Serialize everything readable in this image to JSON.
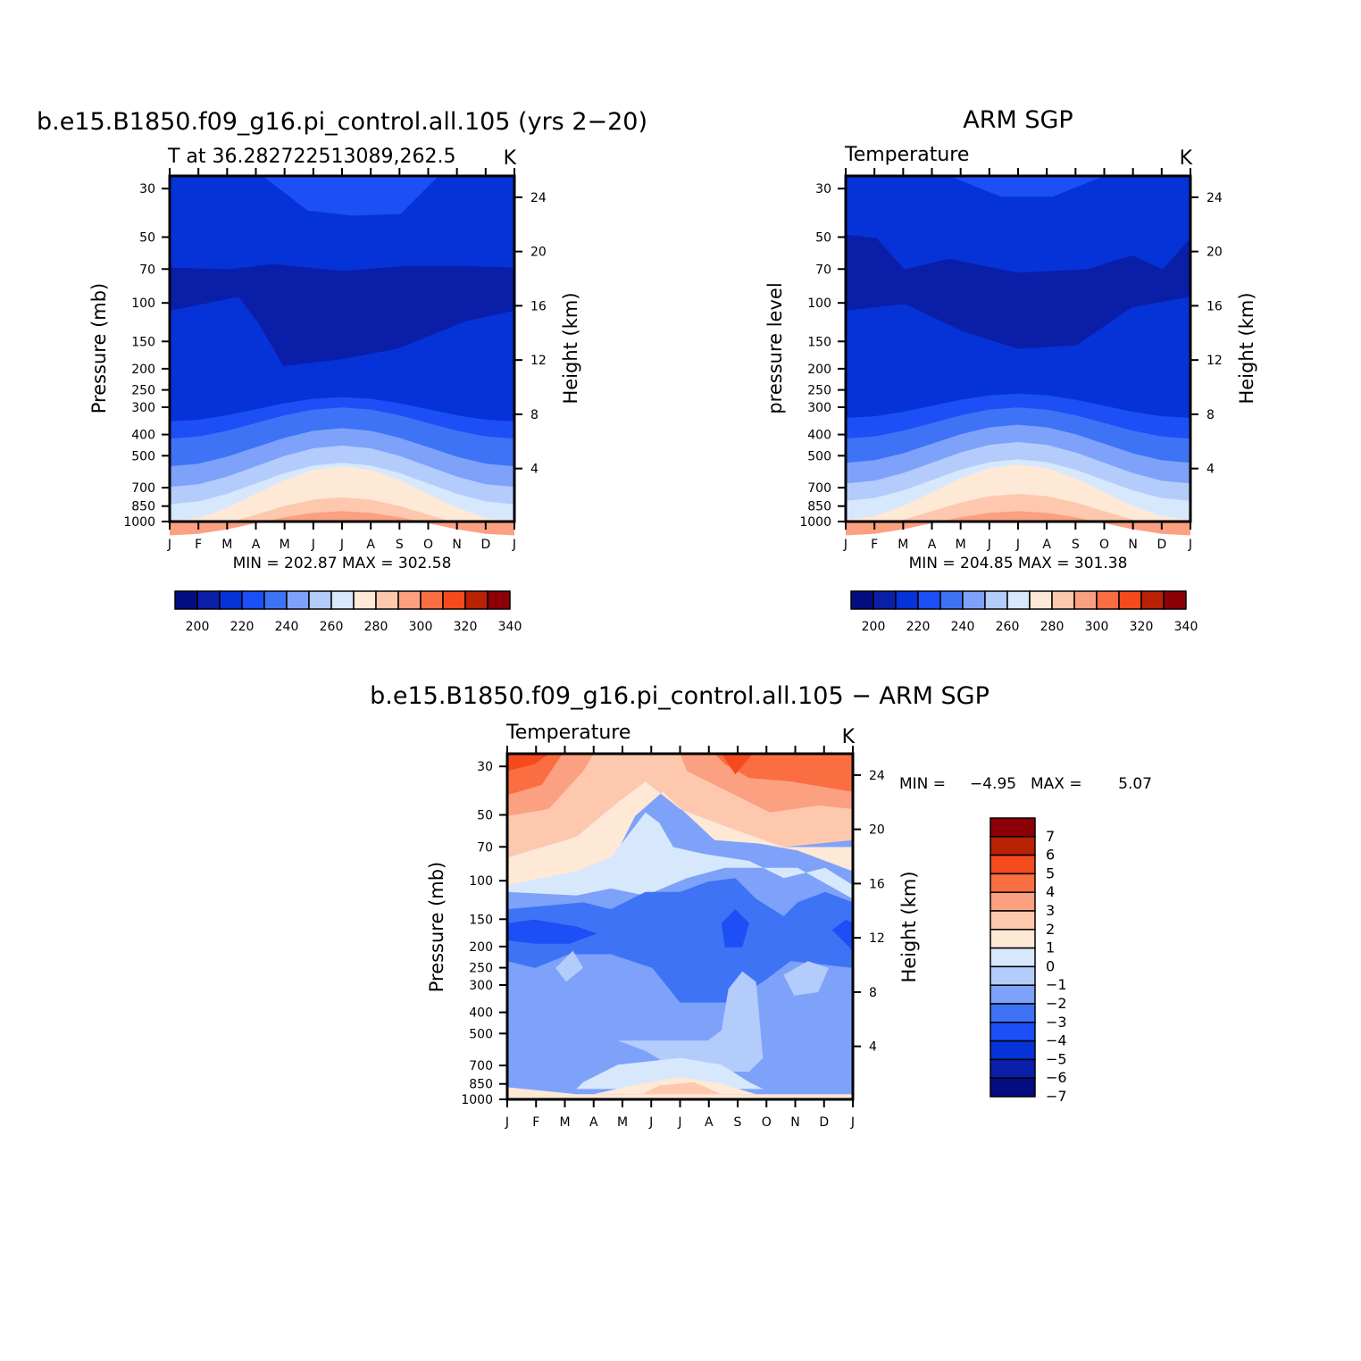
{
  "chart_data": [
    {
      "type": "contour",
      "title": "b.e15.B1850.f09_g16.pi_control.all.105 (yrs 2−20)",
      "subtitle_left": "T at 36.282722513089,262.5",
      "subtitle_right": "K",
      "ylabel": "Pressure (mb)",
      "ylabel_right": "Height (km)",
      "months": [
        "J",
        "F",
        "M",
        "A",
        "M",
        "J",
        "J",
        "A",
        "S",
        "O",
        "N",
        "D",
        "J"
      ],
      "pressure_ticks": [
        "30",
        "50",
        "70",
        "100",
        "150",
        "200",
        "250",
        "300",
        "400",
        "500",
        "700",
        "850",
        "1000"
      ],
      "height_ticks": [
        "24",
        "20",
        "16",
        "12",
        "8",
        "4"
      ],
      "min_max_text": "MIN = 202.87 MAX = 302.58",
      "levels": [
        200,
        210,
        220,
        230,
        240,
        250,
        260,
        270,
        280,
        290,
        300,
        310,
        320,
        330,
        340
      ],
      "colorbar_labels": [
        "200",
        "220",
        "240",
        "260",
        "280",
        "300",
        "320",
        "340"
      ],
      "min": 202.87,
      "max": 302.58
    },
    {
      "type": "contour",
      "title": "ARM SGP",
      "subtitle_left": "Temperature",
      "subtitle_right": "K",
      "ylabel": "pressure level",
      "ylabel_right": "Height (km)",
      "months": [
        "J",
        "F",
        "M",
        "A",
        "M",
        "J",
        "J",
        "A",
        "S",
        "O",
        "N",
        "D",
        "J"
      ],
      "pressure_ticks": [
        "30",
        "50",
        "70",
        "100",
        "150",
        "200",
        "250",
        "300",
        "400",
        "500",
        "700",
        "850",
        "1000"
      ],
      "height_ticks": [
        "24",
        "20",
        "16",
        "12",
        "8",
        "4"
      ],
      "min_max_text": "MIN = 204.85 MAX = 301.38",
      "levels": [
        200,
        210,
        220,
        230,
        240,
        250,
        260,
        270,
        280,
        290,
        300,
        310,
        320,
        330,
        340
      ],
      "colorbar_labels": [
        "200",
        "220",
        "240",
        "260",
        "280",
        "300",
        "320",
        "340"
      ],
      "min": 204.85,
      "max": 301.38
    },
    {
      "type": "contour",
      "title": "b.e15.B1850.f09_g16.pi_control.all.105 − ARM SGP",
      "subtitle_left": "Temperature",
      "subtitle_right": "K",
      "ylabel": "Pressure (mb)",
      "ylabel_right": "Height (km)",
      "months": [
        "J",
        "F",
        "M",
        "A",
        "M",
        "J",
        "J",
        "A",
        "S",
        "O",
        "N",
        "D",
        "J"
      ],
      "pressure_ticks": [
        "30",
        "50",
        "70",
        "100",
        "150",
        "200",
        "250",
        "300",
        "400",
        "500",
        "700",
        "850",
        "1000"
      ],
      "height_ticks": [
        "24",
        "20",
        "16",
        "12",
        "8",
        "4"
      ],
      "min_max_label": "MIN =",
      "min_value_text": "−4.95",
      "max_label": "MAX =",
      "max_value_text": "5.07",
      "levels": [
        -7,
        -6,
        -5,
        -4,
        -3,
        -2,
        -1,
        0,
        1,
        2,
        3,
        4,
        5,
        6,
        7
      ],
      "colorbar_labels": [
        "7",
        "6",
        "5",
        "4",
        "3",
        "2",
        "1",
        "0",
        "−1",
        "−2",
        "−3",
        "−4",
        "−5",
        "−6",
        "−7"
      ],
      "min": -4.95,
      "max": 5.07
    }
  ],
  "palette": [
    "#030D80",
    "#0A1EA8",
    "#0533D8",
    "#1C4FF6",
    "#3E73F6",
    "#7EA2F9",
    "#B4CCFC",
    "#D7E8FD",
    "#FEE8D6",
    "#FDC8AD",
    "#FBA081",
    "#FB6E42",
    "#F44A1C",
    "#B92105",
    "#8D0008"
  ]
}
